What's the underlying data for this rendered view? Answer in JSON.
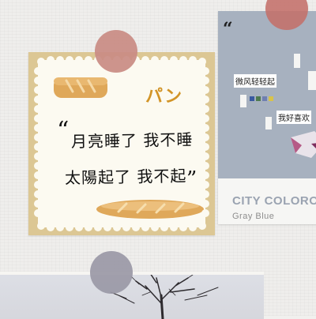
{
  "note": {
    "pan_label": "パン",
    "quote_open": "“",
    "line_1": "月亮睡了 我不睡",
    "line_2": "太陽起了 我不起",
    "quote_close": "”",
    "colors": {
      "frame": "#dcc794",
      "paper": "#fcfaf1",
      "bread": "#dfa85a",
      "pan": "#d29427"
    },
    "icons": [
      "bread-loaf-icon",
      "baguette-icon"
    ]
  },
  "card": {
    "quote_mark": "“",
    "text_1": "微风轻轻起",
    "text_2": "我好喜欢",
    "title": "CITY COLORO",
    "subtitle": "Gray Blue",
    "colors": {
      "background": "#a7b1bf",
      "footer": "#f6f6f4",
      "title": "#9aa3b1"
    }
  },
  "stickers": {
    "colors": [
      "#c98b83",
      "#c46f6a",
      "#9a98a6"
    ]
  },
  "photo": {
    "colors": {
      "sky": "#dddfe6",
      "trees": "#2d2a2e"
    }
  }
}
